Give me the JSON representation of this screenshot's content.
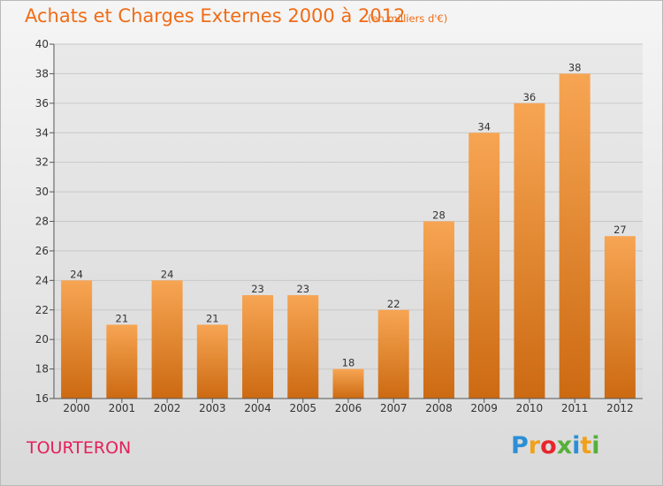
{
  "chart_data": {
    "type": "bar",
    "title": "Achats et Charges Externes 2000 à 2012",
    "subtitle": "(en milliers d'€)",
    "categories": [
      "2000",
      "2001",
      "2002",
      "2003",
      "2004",
      "2005",
      "2006",
      "2007",
      "2008",
      "2009",
      "2010",
      "2011",
      "2012"
    ],
    "values": [
      24,
      21,
      24,
      21,
      23,
      23,
      18,
      22,
      28,
      34,
      36,
      38,
      27
    ],
    "data_labels": [
      "24",
      "21",
      "24",
      "21",
      "23",
      "23",
      "18",
      "22",
      "28",
      "34",
      "36",
      "38",
      "27"
    ],
    "ylim": [
      16,
      40
    ],
    "yticks": [
      "16",
      "18",
      "20",
      "22",
      "24",
      "26",
      "28",
      "30",
      "32",
      "34",
      "36",
      "38",
      "40"
    ],
    "ytick_values": [
      16,
      18,
      20,
      22,
      24,
      26,
      28,
      30,
      32,
      34,
      36,
      38,
      40
    ],
    "xlabel": "",
    "ylabel": "",
    "grid": true,
    "legend": "none",
    "bar_color_top": "#f7a553",
    "bar_color_bottom": "#cc6a12"
  },
  "footer": {
    "town": "TOURTERON",
    "logo_letters": [
      "P",
      "r",
      "o",
      "x",
      "i",
      "t",
      "i"
    ],
    "logo_colors": [
      "#2b8fd6",
      "#f0a11a",
      "#e8252c",
      "#56b03a",
      "#2b8fd6",
      "#f0a11a",
      "#56b03a"
    ]
  }
}
